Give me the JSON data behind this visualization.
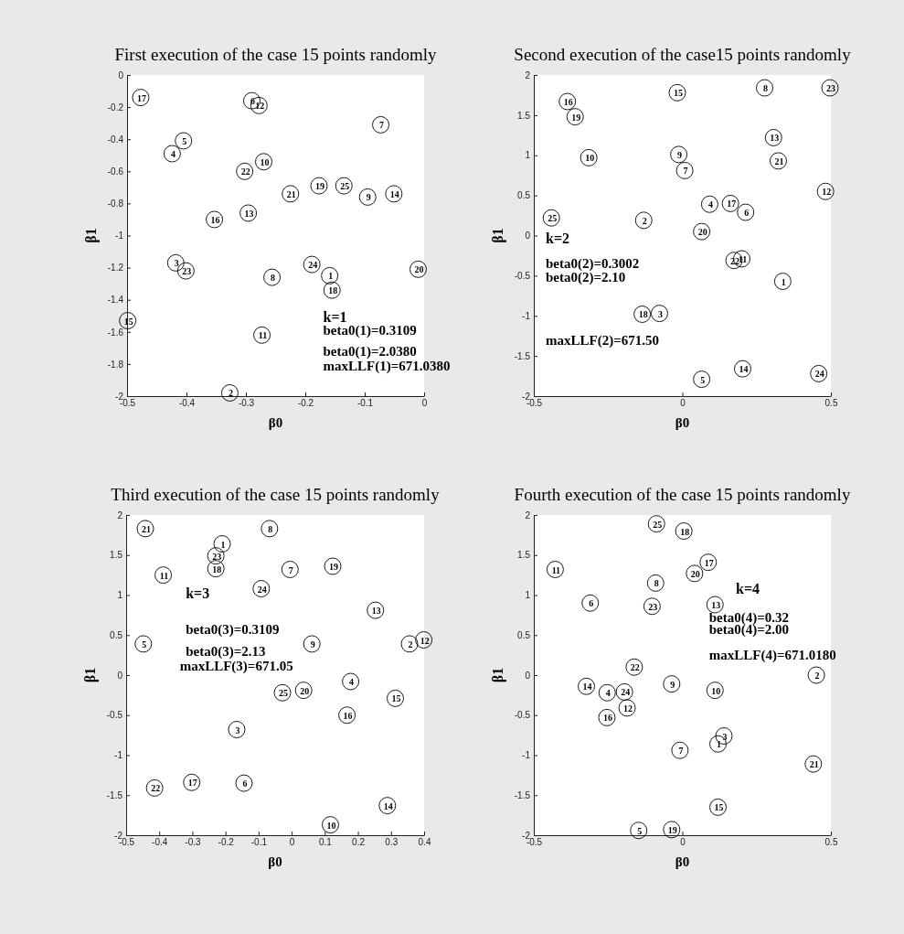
{
  "chart_data": [
    {
      "type": "scatter",
      "title": "First execution of the case 15 points randomly",
      "xlabel": "β0",
      "ylabel": "β1",
      "marker": "circle",
      "grid": false,
      "xlim": [
        -0.5,
        0
      ],
      "xticks": [
        -0.5,
        -0.4,
        -0.3,
        -0.2,
        -0.1,
        0
      ],
      "ylim": [
        -2,
        0
      ],
      "yticks": [
        -2,
        -1.8,
        -1.6,
        -1.4,
        -1.2,
        -1,
        -0.8,
        -0.6,
        -0.4,
        -0.2,
        0
      ],
      "annotations": [
        "k=1",
        "beta0(1)=0.3109",
        "beta0(1)=2.0380",
        "maxLLF(1)=671.0380",
        {
          "text": "1",
          "x": -0.159,
          "y": -1.25
        },
        {
          "text": "2",
          "x": -0.327,
          "y": -1.98
        },
        {
          "text": "3",
          "x": -0.418,
          "y": -1.17
        },
        {
          "text": "4",
          "x": -0.424,
          "y": -0.49
        },
        {
          "text": "5",
          "x": -0.405,
          "y": -0.41
        },
        {
          "text": "6",
          "x": -0.29,
          "y": -0.16
        },
        {
          "text": "7",
          "x": -0.073,
          "y": -0.31
        },
        {
          "text": "8",
          "x": -0.256,
          "y": -1.26
        },
        {
          "text": "9",
          "x": -0.095,
          "y": -0.76
        },
        {
          "text": "10",
          "x": -0.27,
          "y": -0.54
        },
        {
          "text": "11",
          "x": -0.273,
          "y": -1.62
        },
        {
          "text": "12",
          "x": -0.278,
          "y": -0.19
        },
        {
          "text": "13",
          "x": -0.296,
          "y": -0.86
        },
        {
          "text": "14",
          "x": -0.051,
          "y": -0.74
        },
        {
          "text": "15",
          "x": -0.499,
          "y": -1.53
        },
        {
          "text": "16",
          "x": -0.353,
          "y": -0.9
        },
        {
          "text": "17",
          "x": -0.477,
          "y": -0.14
        },
        {
          "text": "18",
          "x": -0.155,
          "y": -1.34
        },
        {
          "text": "19",
          "x": -0.177,
          "y": -0.69
        },
        {
          "text": "20",
          "x": -0.01,
          "y": -1.21
        },
        {
          "text": "21",
          "x": -0.225,
          "y": -0.74
        },
        {
          "text": "22",
          "x": -0.302,
          "y": -0.6
        },
        {
          "text": "23",
          "x": -0.401,
          "y": -1.22
        },
        {
          "text": "24",
          "x": -0.189,
          "y": -1.18
        },
        {
          "text": "25",
          "x": -0.135,
          "y": -0.69
        }
      ],
      "series": [
        {
          "color": "#000000",
          "x": [
            -0.159,
            -0.327,
            -0.418,
            -0.424,
            -0.405,
            -0.29,
            -0.073,
            -0.256,
            -0.095,
            -0.27,
            -0.273,
            -0.278,
            -0.296,
            -0.051,
            -0.499,
            -0.353,
            -0.477,
            -0.155,
            -0.177,
            -0.01,
            -0.225,
            -0.302,
            -0.401,
            -0.189,
            -0.135
          ],
          "values": [
            -1.25,
            -1.98,
            -1.17,
            -0.49,
            -0.41,
            -0.16,
            -0.31,
            -1.26,
            -0.76,
            -0.54,
            -1.62,
            -0.19,
            -0.86,
            -0.74,
            -1.53,
            -0.9,
            -0.14,
            -1.34,
            -0.69,
            -1.21,
            -0.74,
            -0.6,
            -1.22,
            -1.18,
            -0.69
          ]
        }
      ]
    },
    {
      "type": "scatter",
      "title": "Second execution of the case15 points randomly",
      "xlabel": "β0",
      "ylabel": "β1",
      "marker": "circle",
      "grid": false,
      "xlim": [
        -0.5,
        0.5
      ],
      "xticks": [
        -0.5,
        0,
        0.5
      ],
      "ylim": [
        -2,
        2
      ],
      "yticks": [
        -2,
        -1.5,
        -1,
        -0.5,
        0,
        0.5,
        1,
        1.5,
        2
      ],
      "annotations": [
        "k=2",
        "beta0(2)=0.3002",
        "beta0(2)=2.10",
        "maxLLF(2)=671.50",
        {
          "text": "1",
          "x": 0.338,
          "y": -0.57
        },
        {
          "text": "2",
          "x": -0.13,
          "y": 0.19
        },
        {
          "text": "3",
          "x": -0.077,
          "y": -0.97
        },
        {
          "text": "4",
          "x": 0.092,
          "y": 0.39
        },
        {
          "text": "5",
          "x": 0.065,
          "y": -1.79
        },
        {
          "text": "6",
          "x": 0.213,
          "y": 0.29
        },
        {
          "text": "7",
          "x": 0.008,
          "y": 0.81
        },
        {
          "text": "8",
          "x": 0.277,
          "y": 1.84
        },
        {
          "text": "9",
          "x": -0.012,
          "y": 1.01
        },
        {
          "text": "10",
          "x": -0.315,
          "y": 0.97
        },
        {
          "text": "11",
          "x": 0.2,
          "y": -0.29
        },
        {
          "text": "12",
          "x": 0.482,
          "y": 0.55
        },
        {
          "text": "13",
          "x": 0.307,
          "y": 1.22
        },
        {
          "text": "14",
          "x": 0.203,
          "y": -1.66
        },
        {
          "text": "15",
          "x": -0.017,
          "y": 1.78
        },
        {
          "text": "16",
          "x": -0.387,
          "y": 1.67
        },
        {
          "text": "17",
          "x": 0.162,
          "y": 0.4
        },
        {
          "text": "18",
          "x": -0.135,
          "y": -0.98
        },
        {
          "text": "19",
          "x": -0.361,
          "y": 1.48
        },
        {
          "text": "20",
          "x": 0.065,
          "y": 0.05
        },
        {
          "text": "21",
          "x": 0.323,
          "y": 0.93
        },
        {
          "text": "22",
          "x": 0.174,
          "y": -0.31
        },
        {
          "text": "23",
          "x": 0.497,
          "y": 1.84
        },
        {
          "text": "24",
          "x": 0.459,
          "y": -1.72
        },
        {
          "text": "25",
          "x": -0.441,
          "y": 0.22
        }
      ],
      "series": [
        {
          "color": "#000000",
          "x": [
            0.338,
            -0.13,
            -0.077,
            0.092,
            0.065,
            0.213,
            0.008,
            0.277,
            -0.012,
            -0.315,
            0.2,
            0.482,
            0.307,
            0.203,
            -0.017,
            -0.387,
            0.162,
            -0.135,
            -0.361,
            0.065,
            0.323,
            0.174,
            0.497,
            0.459,
            -0.441
          ],
          "values": [
            -0.57,
            0.19,
            -0.97,
            0.39,
            -1.79,
            0.29,
            0.81,
            1.84,
            1.01,
            0.97,
            -0.29,
            0.55,
            1.22,
            -1.66,
            1.78,
            1.67,
            0.4,
            -0.98,
            1.48,
            0.05,
            0.93,
            -0.31,
            1.84,
            -1.72,
            0.22
          ]
        }
      ]
    },
    {
      "type": "scatter",
      "title": "Third execution of the case 15 points randomly",
      "xlabel": "β0",
      "ylabel": "β1",
      "marker": "circle",
      "grid": false,
      "xlim": [
        -0.5,
        0.4
      ],
      "xticks": [
        -0.5,
        -0.4,
        -0.3,
        -0.2,
        -0.1,
        0,
        0.1,
        0.2,
        0.3,
        0.4
      ],
      "ylim": [
        -2,
        2
      ],
      "yticks": [
        -2,
        -1.5,
        -1,
        -0.5,
        0,
        0.5,
        1,
        1.5,
        2
      ],
      "annotations": [
        "k=3",
        "beta0(3)=0.3109",
        "beta0(3)=2.13",
        "maxLLF(3)=671.05",
        {
          "text": "1",
          "x": -0.21,
          "y": 1.64
        },
        {
          "text": "2",
          "x": 0.356,
          "y": 0.39
        },
        {
          "text": "3",
          "x": -0.166,
          "y": -0.68
        },
        {
          "text": "4",
          "x": 0.178,
          "y": -0.08
        },
        {
          "text": "5",
          "x": -0.448,
          "y": 0.39
        },
        {
          "text": "6",
          "x": -0.144,
          "y": -1.35
        },
        {
          "text": "7",
          "x": -0.005,
          "y": 1.32
        },
        {
          "text": "8",
          "x": -0.067,
          "y": 1.83
        },
        {
          "text": "9",
          "x": 0.061,
          "y": 0.39
        },
        {
          "text": "10",
          "x": 0.117,
          "y": -1.87
        },
        {
          "text": "11",
          "x": -0.388,
          "y": 1.25
        },
        {
          "text": "12",
          "x": 0.399,
          "y": 0.44
        },
        {
          "text": "13",
          "x": 0.253,
          "y": 0.81
        },
        {
          "text": "14",
          "x": 0.289,
          "y": -1.63
        },
        {
          "text": "15",
          "x": 0.313,
          "y": -0.29
        },
        {
          "text": "16",
          "x": 0.167,
          "y": -0.5
        },
        {
          "text": "17",
          "x": -0.302,
          "y": -1.34
        },
        {
          "text": "18",
          "x": -0.229,
          "y": 1.33
        },
        {
          "text": "19",
          "x": 0.124,
          "y": 1.36
        },
        {
          "text": "20",
          "x": 0.036,
          "y": -0.19
        },
        {
          "text": "21",
          "x": -0.442,
          "y": 1.83
        },
        {
          "text": "22",
          "x": -0.414,
          "y": -1.41
        },
        {
          "text": "23",
          "x": -0.229,
          "y": 1.49
        },
        {
          "text": "24",
          "x": -0.092,
          "y": 1.08
        },
        {
          "text": "25",
          "x": -0.028,
          "y": -0.22
        }
      ],
      "series": [
        {
          "color": "#000000",
          "x": [
            -0.21,
            0.356,
            -0.166,
            0.178,
            -0.448,
            -0.144,
            -0.005,
            -0.067,
            0.061,
            0.117,
            -0.388,
            0.399,
            0.253,
            0.289,
            0.313,
            0.167,
            -0.302,
            -0.229,
            0.124,
            0.036,
            -0.442,
            -0.414,
            -0.229,
            -0.092,
            -0.028
          ],
          "values": [
            1.64,
            0.39,
            -0.68,
            -0.08,
            0.39,
            -1.35,
            1.32,
            1.83,
            0.39,
            -1.87,
            1.25,
            0.44,
            0.81,
            -1.63,
            -0.29,
            -0.5,
            -1.34,
            1.33,
            1.36,
            -0.19,
            1.83,
            -1.41,
            1.49,
            1.08,
            -0.22
          ]
        }
      ]
    },
    {
      "type": "scatter",
      "title": "Fourth execution of the case 15 points randomly",
      "xlabel": "β0",
      "ylabel": "β1",
      "marker": "circle",
      "grid": false,
      "xlim": [
        -0.5,
        0.5
      ],
      "xticks": [
        -0.5,
        0,
        0.5
      ],
      "ylim": [
        -2,
        2
      ],
      "yticks": [
        -2,
        -1.5,
        -1,
        -0.5,
        0,
        0.5,
        1,
        1.5,
        2
      ],
      "annotations": [
        "k=4",
        "beta0(4)=0.32",
        "beta0(4)=2.00",
        "maxLLF(4)=671.0180",
        {
          "text": "1",
          "x": 0.12,
          "y": -0.86
        },
        {
          "text": "2",
          "x": 0.451,
          "y": 0.0
        },
        {
          "text": "3",
          "x": 0.14,
          "y": -0.76
        },
        {
          "text": "4",
          "x": -0.253,
          "y": -0.22
        },
        {
          "text": "5",
          "x": -0.147,
          "y": -1.94
        },
        {
          "text": "6",
          "x": -0.31,
          "y": 0.9
        },
        {
          "text": "7",
          "x": -0.008,
          "y": -0.94
        },
        {
          "text": "8",
          "x": -0.09,
          "y": 1.15
        },
        {
          "text": "9",
          "x": -0.036,
          "y": -0.11
        },
        {
          "text": "10",
          "x": 0.11,
          "y": -0.19
        },
        {
          "text": "11",
          "x": -0.428,
          "y": 1.32
        },
        {
          "text": "12",
          "x": -0.186,
          "y": -0.41
        },
        {
          "text": "13",
          "x": 0.11,
          "y": 0.88
        },
        {
          "text": "14",
          "x": -0.323,
          "y": -0.14
        },
        {
          "text": "15",
          "x": 0.12,
          "y": -1.65
        },
        {
          "text": "16",
          "x": -0.254,
          "y": -0.53
        },
        {
          "text": "17",
          "x": 0.087,
          "y": 1.41
        },
        {
          "text": "18",
          "x": 0.005,
          "y": 1.8
        },
        {
          "text": "19",
          "x": -0.036,
          "y": -1.93
        },
        {
          "text": "20",
          "x": 0.041,
          "y": 1.27
        },
        {
          "text": "21",
          "x": 0.441,
          "y": -1.11
        },
        {
          "text": "22",
          "x": -0.162,
          "y": 0.1
        },
        {
          "text": "23",
          "x": -0.102,
          "y": 0.86
        },
        {
          "text": "24",
          "x": -0.195,
          "y": -0.21
        },
        {
          "text": "25",
          "x": -0.087,
          "y": 1.89
        }
      ],
      "series": [
        {
          "color": "#000000",
          "x": [
            0.12,
            0.451,
            0.14,
            -0.253,
            -0.147,
            -0.31,
            -0.008,
            -0.09,
            -0.036,
            0.11,
            -0.428,
            -0.186,
            0.11,
            -0.323,
            0.12,
            -0.254,
            0.087,
            0.005,
            -0.036,
            0.041,
            0.441,
            -0.162,
            -0.102,
            -0.195,
            -0.087
          ],
          "values": [
            -0.86,
            0.0,
            -0.76,
            -0.22,
            -1.94,
            0.9,
            -0.94,
            1.15,
            -0.11,
            -0.19,
            1.32,
            -0.41,
            0.88,
            -0.14,
            -1.65,
            -0.53,
            1.41,
            1.8,
            -1.93,
            1.27,
            -1.11,
            0.1,
            0.86,
            -0.21,
            1.89
          ]
        }
      ]
    }
  ]
}
